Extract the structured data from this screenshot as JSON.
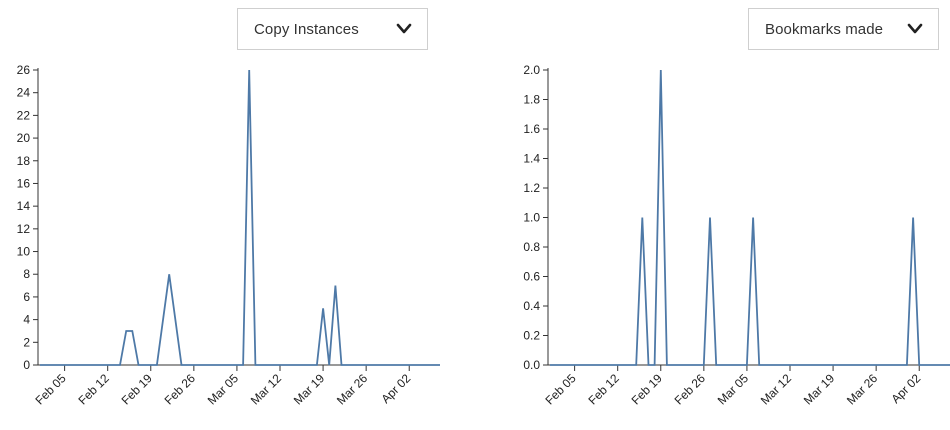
{
  "controls": {
    "left_select": {
      "value": "Copy Instances"
    },
    "right_select": {
      "value": "Bookmarks made"
    }
  },
  "icons": {
    "dropdown": "chevron-down-icon"
  },
  "colors": {
    "line": "#4e79a7",
    "axis": "#333333"
  },
  "chart_data": [
    {
      "type": "line",
      "metric": "Copy Instances",
      "ylim": [
        0,
        26
      ],
      "yticks": [
        0,
        2,
        4,
        6,
        8,
        10,
        12,
        14,
        16,
        18,
        20,
        22,
        24,
        26
      ],
      "xticks": [
        "Feb 05",
        "Feb 12",
        "Feb 19",
        "Feb 26",
        "Mar 05",
        "Mar 12",
        "Mar 19",
        "Mar 26",
        "Apr 02"
      ],
      "x_start": "2018-02-01",
      "x_end": "2018-04-07",
      "series": [
        {
          "points": [
            [
              "2018-02-01",
              0
            ],
            [
              "2018-02-14",
              0
            ],
            [
              "2018-02-15",
              3
            ],
            [
              "2018-02-16",
              3
            ],
            [
              "2018-02-17",
              0
            ],
            [
              "2018-02-20",
              0
            ],
            [
              "2018-02-22",
              8
            ],
            [
              "2018-02-24",
              0
            ],
            [
              "2018-03-06",
              0
            ],
            [
              "2018-03-07",
              26
            ],
            [
              "2018-03-08",
              0
            ],
            [
              "2018-03-18",
              0
            ],
            [
              "2018-03-19",
              5
            ],
            [
              "2018-03-20",
              0
            ],
            [
              "2018-03-21",
              7
            ],
            [
              "2018-03-22",
              0
            ],
            [
              "2018-04-07",
              0
            ]
          ]
        }
      ]
    },
    {
      "type": "line",
      "metric": "Bookmarks made",
      "ylim": [
        0,
        2.0
      ],
      "yticks": [
        "0.0",
        "0.2",
        "0.4",
        "0.6",
        "0.8",
        "1.0",
        "1.2",
        "1.4",
        "1.6",
        "1.8",
        "2.0"
      ],
      "xticks": [
        "Feb 05",
        "Feb 12",
        "Feb 19",
        "Feb 26",
        "Mar 05",
        "Mar 12",
        "Mar 19",
        "Mar 26",
        "Apr 02"
      ],
      "x_start": "2018-02-01",
      "x_end": "2018-04-07",
      "series": [
        {
          "points": [
            [
              "2018-02-01",
              0
            ],
            [
              "2018-02-15",
              0
            ],
            [
              "2018-02-16",
              1
            ],
            [
              "2018-02-17",
              0
            ],
            [
              "2018-02-18",
              0
            ],
            [
              "2018-02-19",
              2
            ],
            [
              "2018-02-20",
              0
            ],
            [
              "2018-02-26",
              0
            ],
            [
              "2018-02-27",
              1
            ],
            [
              "2018-02-28",
              0
            ],
            [
              "2018-03-05",
              0
            ],
            [
              "2018-03-06",
              1
            ],
            [
              "2018-03-07",
              0
            ],
            [
              "2018-03-31",
              0
            ],
            [
              "2018-04-01",
              1
            ],
            [
              "2018-04-02",
              0
            ],
            [
              "2018-04-07",
              0
            ]
          ]
        }
      ]
    }
  ]
}
